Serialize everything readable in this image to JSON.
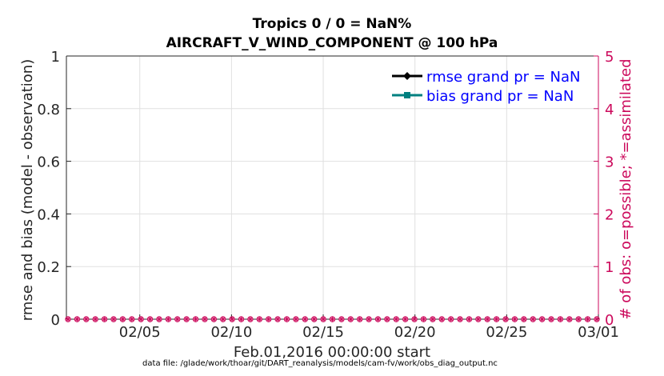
{
  "header": {
    "title": "Tropics 0 / 0 = NaN%",
    "subtitle": "AIRCRAFT_V_WIND_COMPONENT @ 100 hPa"
  },
  "footer": {
    "data_file": "data file: /glade/work/thoar/git/DART_reanalysis/models/cam-fv/work/obs_diag_output.nc"
  },
  "colors": {
    "rmse": "#000000",
    "bias": "#008080",
    "legend_text": "#0000ff",
    "right_axis": "#cc0a5c",
    "grid": "#e0e0e0"
  },
  "chart_data": {
    "type": "line",
    "xlabel": "Feb.01,2016 00:00:00 start",
    "ylabel": "rmse and bias (model - observation)",
    "y2label": "# of obs: o=possible; *=assimilated",
    "xlim": [
      1,
      30
    ],
    "x_ticks": [
      5,
      10,
      15,
      20,
      25,
      30
    ],
    "x_tick_labels": [
      "02/05",
      "02/10",
      "02/15",
      "02/20",
      "02/25",
      "03/01"
    ],
    "ylim": [
      0,
      1
    ],
    "y_ticks": [
      0,
      0.2,
      0.4,
      0.6,
      0.8,
      1
    ],
    "y_tick_labels": [
      "0",
      "0.2",
      "0.4",
      "0.6",
      "0.8",
      "1"
    ],
    "y2lim": [
      0,
      5
    ],
    "y2_ticks": [
      0,
      1,
      2,
      3,
      4,
      5
    ],
    "y2_tick_labels": [
      "0",
      "1",
      "2",
      "3",
      "4",
      "5"
    ],
    "grid": true,
    "legend_position": "top-right",
    "series": [
      {
        "name": "rmse grand pr = NaN",
        "values": []
      },
      {
        "name": "bias grand pr = NaN",
        "values": []
      }
    ],
    "obs_counts": {
      "possible": [
        0,
        0,
        0,
        0,
        0,
        0,
        0,
        0,
        0,
        0,
        0,
        0,
        0,
        0,
        0,
        0,
        0,
        0,
        0,
        0,
        0,
        0,
        0,
        0,
        0,
        0,
        0,
        0,
        0,
        0,
        0,
        0,
        0,
        0,
        0,
        0,
        0,
        0,
        0,
        0,
        0,
        0,
        0,
        0,
        0,
        0,
        0,
        0,
        0,
        0,
        0,
        0,
        0,
        0,
        0,
        0,
        0,
        0,
        0
      ],
      "assimilated": [
        0,
        0,
        0,
        0,
        0,
        0,
        0,
        0,
        0,
        0,
        0,
        0,
        0,
        0,
        0,
        0,
        0,
        0,
        0,
        0,
        0,
        0,
        0,
        0,
        0,
        0,
        0,
        0,
        0,
        0,
        0,
        0,
        0,
        0,
        0,
        0,
        0,
        0,
        0,
        0,
        0,
        0,
        0,
        0,
        0,
        0,
        0,
        0,
        0,
        0,
        0,
        0,
        0,
        0,
        0,
        0,
        0,
        0,
        0
      ]
    }
  }
}
